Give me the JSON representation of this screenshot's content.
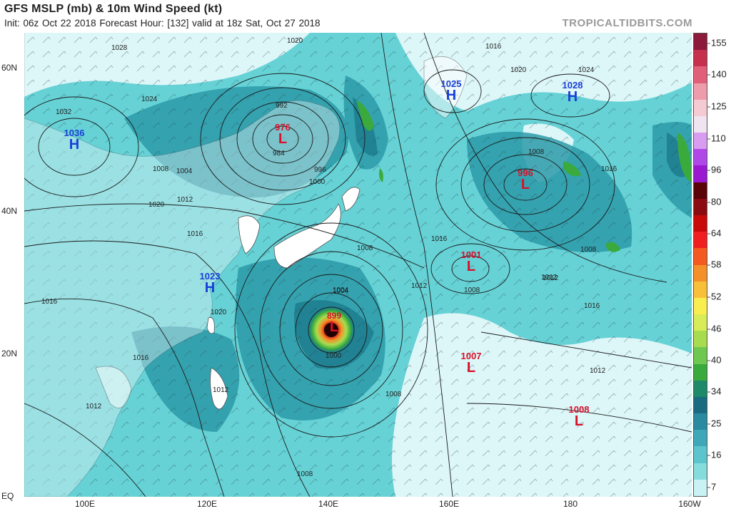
{
  "header": {
    "title": "GFS MSLP (mb) & 10m Wind Speed (kt)",
    "subtitle": "Init: 06z Oct 22 2018   Forecast Hour: [132]   valid at 18z Sat, Oct 27 2018",
    "brand": "TROPICALTIDBITS.COM"
  },
  "axes": {
    "lat_labels": [
      "60N",
      "40N",
      "20N",
      "EQ"
    ],
    "lon_labels": [
      "100E",
      "120E",
      "140E",
      "160E",
      "180",
      "160W"
    ]
  },
  "pressure_centers": [
    {
      "type": "H",
      "value": "1036",
      "color": "#1a3fd6"
    },
    {
      "type": "H",
      "value": "1023",
      "color": "#1a3fd6"
    },
    {
      "type": "H",
      "value": "1025",
      "color": "#1a3fd6"
    },
    {
      "type": "H",
      "value": "1028",
      "color": "#1a3fd6"
    },
    {
      "type": "L",
      "value": "976",
      "color": "#d8102a"
    },
    {
      "type": "L",
      "value": "996",
      "color": "#d8102a"
    },
    {
      "type": "L",
      "value": "1001",
      "color": "#d8102a"
    },
    {
      "type": "L",
      "value": "899",
      "color": "#d8102a"
    },
    {
      "type": "L",
      "value": "1007",
      "color": "#d8102a"
    },
    {
      "type": "L",
      "value": "1008",
      "color": "#d8102a"
    }
  ],
  "isobar_labels": [
    "1028",
    "1020",
    "1032",
    "1024",
    "1008",
    "1004",
    "1016",
    "1012",
    "1000",
    "996",
    "992",
    "984",
    "1020",
    "1016",
    "1012",
    "1024",
    "1020",
    "1016",
    "1008",
    "1012",
    "1008",
    "1004",
    "1012",
    "1016",
    "1008",
    "1012",
    "1016",
    "1004",
    "1000",
    "1008",
    "1008",
    "1012",
    "1016",
    "1012",
    "1008",
    "1020",
    "1016"
  ],
  "colorbar": {
    "ticks": [
      "155",
      "140",
      "125",
      "110",
      "96",
      "80",
      "64",
      "58",
      "52",
      "46",
      "40",
      "34",
      "25",
      "16",
      "7"
    ],
    "colors": [
      "#8c1a3a",
      "#c5304e",
      "#e0607a",
      "#ee9cac",
      "#f5cbd3",
      "#f0e4f0",
      "#d89cf0",
      "#b048e8",
      "#9a18d0",
      "#5a0408",
      "#8a0c10",
      "#c80a0a",
      "#f02020",
      "#f45a20",
      "#f4902a",
      "#f8c03a",
      "#f8ee50",
      "#d8ec58",
      "#a8dc50",
      "#6ec850",
      "#3aaa3c",
      "#1e8a6a",
      "#1a6a80",
      "#2a8aa0",
      "#3ea8b8",
      "#5cc4cc",
      "#84dcdc",
      "#c8f2f4"
    ]
  }
}
